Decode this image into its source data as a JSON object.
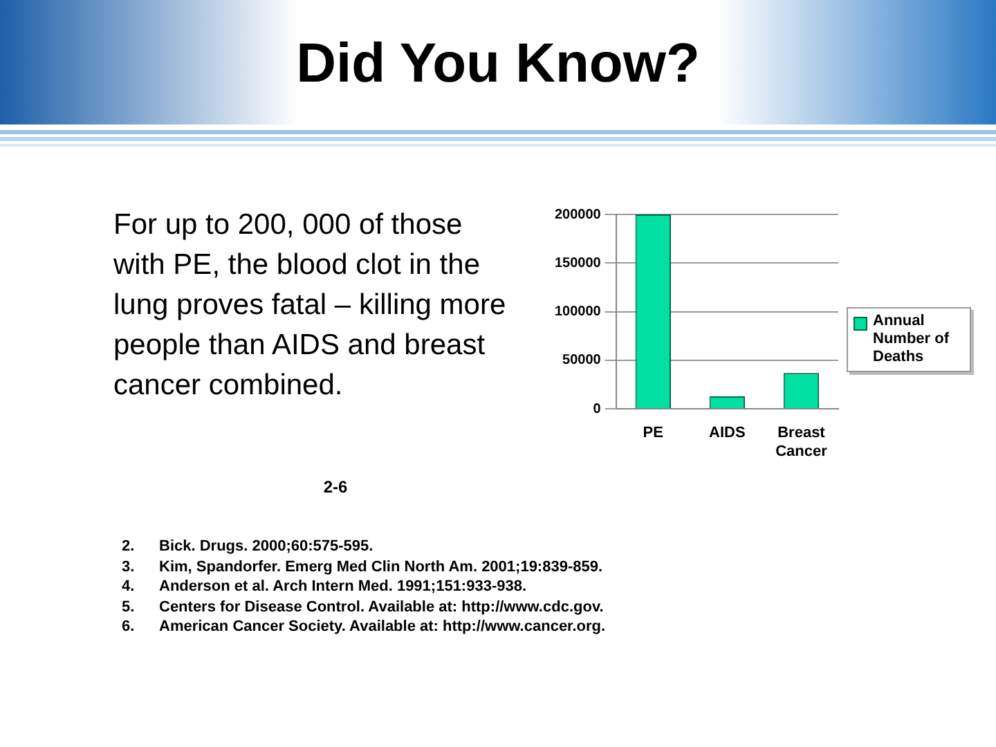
{
  "chart_data": {
    "type": "bar",
    "title": "Did You Know?",
    "categories": [
      "PE",
      "AIDS",
      "Breast Cancer"
    ],
    "series": [
      {
        "name": "Annual Number of Deaths",
        "color": "#00e0a0",
        "values": [
          200000,
          13000,
          37000
        ]
      }
    ],
    "ylim": [
      0,
      200000
    ],
    "yticks": [
      0,
      50000,
      100000,
      150000,
      200000
    ],
    "grid": "y",
    "legend": "right",
    "annotations": [
      "For up to 200, 000 of those with PE, the blood clot in the lung proves fatal – killing more people than AIDS and breast cancer combined.",
      "2-6",
      "2.\tBick. Drugs. 2000;60:575-595.",
      "3.\tKim, Spandorfer. Emerg Med Clin North Am. 2001;19:839-859.",
      "4.\tAnderson et al. Arch Intern Med. 1991;151:933-938.",
      "5.\tCenters for Disease Control. Available at: http://www.cdc.gov.",
      "6.\tAmerican Cancer Society. Available at: http://www.cancer.org."
    ]
  }
}
